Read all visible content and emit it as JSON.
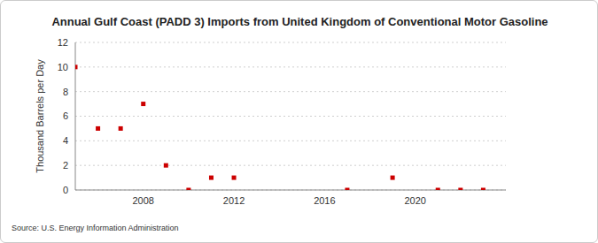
{
  "chart_data": {
    "type": "scatter",
    "title": "Annual Gulf Coast (PADD 3) Imports from United Kingdom of Conventional Motor Gasoline",
    "y_label": "Thousand Barrels per Day",
    "annotations": [
      "Source: U.S. Energy Information Administration"
    ],
    "x": [
      2005,
      2006,
      2007,
      2008,
      2009,
      2010,
      2011,
      2012,
      2017,
      2019,
      2021,
      2022,
      2023
    ],
    "values": [
      10,
      5,
      5,
      7,
      2,
      0,
      1,
      1,
      0,
      1,
      0,
      0,
      0
    ],
    "color": "#cc0000",
    "marker": "square",
    "xlim": [
      2005,
      2024
    ],
    "xticks": [
      2008,
      2012,
      2016,
      2020
    ],
    "ylim": [
      0,
      12
    ],
    "yticks": [
      0,
      2,
      4,
      6,
      8,
      10,
      12
    ],
    "grid": true
  }
}
